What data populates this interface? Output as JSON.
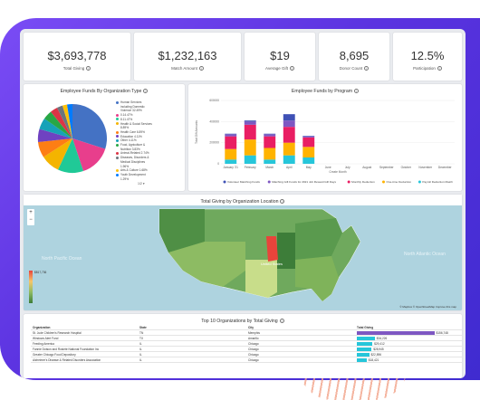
{
  "kpis": [
    {
      "value": "$3,693,778",
      "label": "Total Giving"
    },
    {
      "value": "$1,232,163",
      "label": "Match Amount"
    },
    {
      "value": "$19",
      "label": "Average Gift"
    },
    {
      "value": "8,695",
      "label": "Donor Count"
    },
    {
      "value": "12.5%",
      "label": "Participation"
    }
  ],
  "pie_card": {
    "title": "Employee Funds By Organization Type",
    "legend": [
      {
        "label": "Human Services",
        "color": "#4472c4"
      },
      {
        "label": "including Domestic",
        "color": "#ffffff"
      },
      {
        "label": "Violence 32.49%",
        "color": "#ffffff"
      },
      {
        "label": "0.14.47%",
        "color": "#e83e8c"
      },
      {
        "label": "8.11.47%",
        "color": "#20c997"
      },
      {
        "label": "Health & Social Services",
        "color": "#f4b400"
      },
      {
        "label": "8.89%",
        "color": "#ffffff"
      },
      {
        "label": "Health Care 6.89%",
        "color": "#fd7e14"
      },
      {
        "label": "Education 4.11%",
        "color": "#6f42c1"
      },
      {
        "label": "Other 4.11%",
        "color": "#17a2b8"
      },
      {
        "label": "Food, Agriculture &",
        "color": "#28a745"
      },
      {
        "label": "Nutrition 3.83%",
        "color": "#ffffff"
      },
      {
        "label": "Animal-Related 2.74%",
        "color": "#dc3545"
      },
      {
        "label": "Diseases, Disorders &",
        "color": "#6c757d"
      },
      {
        "label": "Medical Disciplines",
        "color": "#ffffff"
      },
      {
        "label": "1.96%",
        "color": "#ffffff"
      },
      {
        "label": "Arts & Culture 1.68%",
        "color": "#ffc107"
      },
      {
        "label": "Youth Development",
        "color": "#007bff"
      },
      {
        "label": "1.29%",
        "color": "#ffffff"
      }
    ],
    "pager": "1/2"
  },
  "chart_data": {
    "type": "bar",
    "title": "Employee Funds by Program",
    "ylabel": "Total Gift Amounts",
    "xlabel": "Create Month",
    "ylim": [
      0,
      600000
    ],
    "y_ticks": [
      "600000",
      "400000",
      "200000",
      "0"
    ],
    "categories": [
      "January '21",
      "February",
      "March",
      "April",
      "May",
      "June",
      "July",
      "August",
      "September",
      "October",
      "November",
      "December"
    ],
    "series": [
      {
        "name": "Volunteer Matching Funds",
        "color": "#3f51b5",
        "values": [
          5000,
          10000,
          5000,
          60000,
          5000,
          0,
          0,
          0,
          0,
          0,
          0,
          0
        ]
      },
      {
        "name": "Matching Gift Funds for 2021 Job Reward Gift Days",
        "color": "#7e57c2",
        "values": [
          20000,
          30000,
          20000,
          60000,
          10000,
          0,
          0,
          0,
          0,
          0,
          0,
          0
        ]
      },
      {
        "name": "Monthly Deduction",
        "color": "#e91e63",
        "values": [
          120000,
          140000,
          110000,
          150000,
          90000,
          0,
          0,
          0,
          0,
          0,
          0,
          0
        ]
      },
      {
        "name": "One-time Deduction",
        "color": "#ffb300",
        "values": [
          100000,
          150000,
          110000,
          120000,
          100000,
          0,
          0,
          0,
          0,
          0,
          0,
          0
        ]
      },
      {
        "name": "Payroll Deduction Match",
        "color": "#26c6da",
        "values": [
          40000,
          80000,
          40000,
          80000,
          60000,
          0,
          0,
          0,
          0,
          0,
          0,
          0
        ]
      }
    ]
  },
  "map_card": {
    "title": "Total Giving by Organization Location",
    "oceans": [
      "North Pacific Ocean",
      "North Atlantic Ocean"
    ],
    "labels": [
      "United States"
    ],
    "zoom_in": "+",
    "zoom_out": "−",
    "scale_max": "$817,736",
    "attribution": "© Mapbox © OpenStreetMap Improve this map"
  },
  "table": {
    "title": "Top 10 Organizations by Total Giving",
    "headers": [
      "Organization",
      "State",
      "City",
      "Total Giving"
    ],
    "rows": [
      {
        "org": "St. Jude Children's Research Hospital",
        "state": "TN",
        "city": "Memphis",
        "total": "$156,748",
        "pct": 0.95,
        "color": "#7e57c2"
      },
      {
        "org": "Windows Alert Fund",
        "state": "TX",
        "city": "Amarillo",
        "total": "$34,226",
        "pct": 0.22,
        "color": "#26c6da"
      },
      {
        "org": "Feeding America",
        "state": "IL",
        "city": "Chicago",
        "total": "$29,412",
        "pct": 0.19,
        "color": "#26c6da"
      },
      {
        "org": "Fannie Dotson and Rosiete National Foundation Inc",
        "state": "IL",
        "city": "Chicago",
        "total": "$28,945",
        "pct": 0.18,
        "color": "#26c6da"
      },
      {
        "org": "Greater Chicago Food Depository",
        "state": "IL",
        "city": "Chicago",
        "total": "$22,896",
        "pct": 0.15,
        "color": "#26c6da"
      },
      {
        "org": "Alzheimer's Disease & Related Disorders Association",
        "state": "IL",
        "city": "Chicago",
        "total": "$18,421",
        "pct": 0.12,
        "color": "#26c6da"
      }
    ]
  }
}
